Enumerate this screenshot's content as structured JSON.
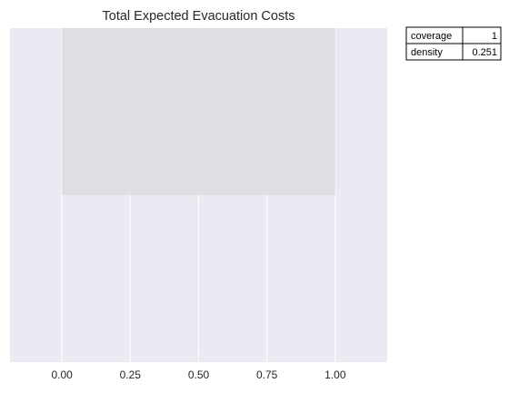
{
  "chart_data": {
    "type": "area",
    "title": "Total Expected Evacuation Costs",
    "xlabel": "",
    "ylabel": "",
    "x_ticks": [
      "0.00",
      "0.25",
      "0.50",
      "0.75",
      "1.00"
    ],
    "x_tick_values": [
      0.0,
      0.25,
      0.5,
      0.75,
      1.0
    ],
    "xlim": [
      -0.19,
      1.19
    ],
    "ylim": [
      0,
      1
    ],
    "grid": true,
    "y_axis_labels_shown": false,
    "box": {
      "x": [
        0.0,
        1.0
      ],
      "y": [
        0.5,
        1.0
      ]
    },
    "stats_table": [
      {
        "label": "coverage",
        "value": "1"
      },
      {
        "label": "density",
        "value": "0.251"
      }
    ]
  },
  "colors": {
    "axes_background": "#eaeaf2",
    "gridline": "#ffffff",
    "box_fill": "#dedde2",
    "text": "#262626",
    "table_border": "#000000"
  }
}
